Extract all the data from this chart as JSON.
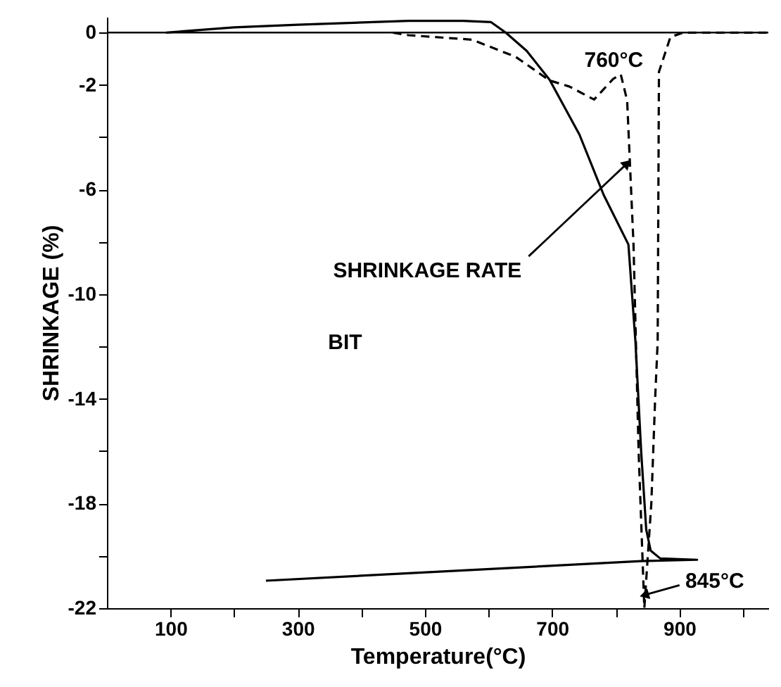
{
  "chart_data": {
    "type": "line",
    "xlabel": "Temperature(°C)",
    "ylabel": "SHRINKAGE (%)",
    "xlim": [
      0,
      1040
    ],
    "ylim": [
      -22,
      0.6
    ],
    "xticks": [
      100,
      {
        "value": 200,
        "label": null
      },
      300,
      {
        "value": 400,
        "label": null
      },
      500,
      {
        "value": 600,
        "label": null
      },
      700,
      {
        "value": 800,
        "label": null
      },
      900,
      {
        "value": 1000,
        "label": null
      }
    ],
    "yticks": [
      0,
      -2,
      {
        "value": -4,
        "label": null
      },
      -6,
      {
        "value": -8,
        "label": null
      },
      -10,
      {
        "value": -12,
        "label": null
      },
      -14,
      {
        "value": -16,
        "label": null
      },
      -18,
      {
        "value": -20,
        "label": null
      },
      -22
    ],
    "grid": false,
    "series": [
      {
        "color": "#000000",
        "line_style": "solid",
        "x": [
          93,
          200,
          300,
          474,
          560,
          604,
          627,
          660,
          696,
          743,
          781,
          820,
          831,
          840,
          848,
          855,
          870,
          928,
          840,
          250
        ],
        "values": [
          0,
          0.2,
          0.3,
          0.45,
          0.45,
          0.4,
          0,
          -0.7,
          -1.8,
          -3.9,
          -6.2,
          -8.1,
          -11.8,
          -16,
          -19,
          -19.8,
          -20.1,
          -20.15,
          -20.2,
          -20.95
        ]
      },
      {
        "color": "#000000",
        "line_style": "dashed",
        "x": [
          450,
          474,
          574,
          643,
          696,
          727,
          766,
          796,
          808,
          818,
          828,
          836,
          845,
          856,
          862,
          866,
          868,
          886,
          906,
          1040
        ],
        "values": [
          0,
          -0.1,
          -0.27,
          -0.93,
          -1.83,
          -2.06,
          -2.56,
          -1.77,
          -1.6,
          -2.6,
          -8.1,
          -16,
          -22,
          -18,
          -14,
          -11.8,
          -1.5,
          -0.17,
          0,
          0
        ]
      }
    ],
    "ref_lines": [
      {
        "axis": "y",
        "value": 0
      }
    ],
    "annotations": [
      {
        "text": "760°C",
        "x": 766,
        "y": -2.56
      },
      {
        "text": "SHRINKAGE RATE",
        "x": 818,
        "y": -5
      },
      "BIT",
      {
        "text": "845°C",
        "x": 845,
        "y": -21.5
      }
    ]
  }
}
